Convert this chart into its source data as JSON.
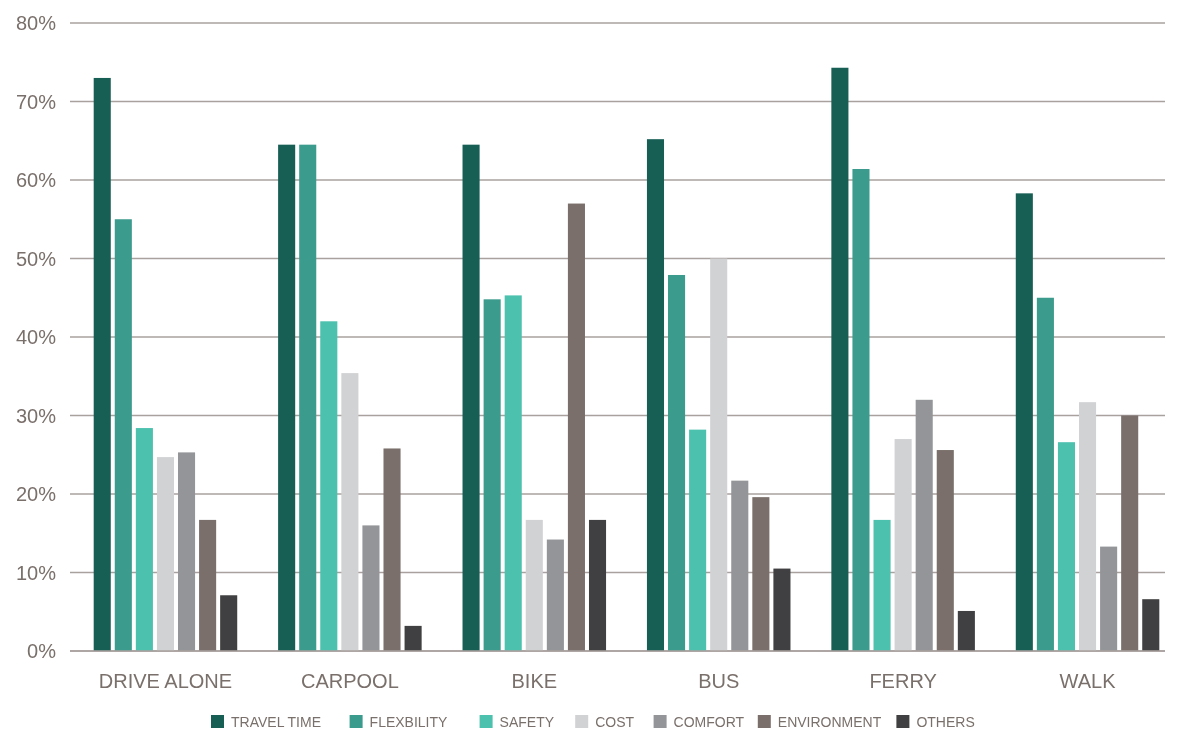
{
  "chart_data": {
    "type": "bar",
    "categories": [
      "DRIVE ALONE",
      "CARPOOL",
      "BIKE",
      "BUS",
      "FERRY",
      "WALK"
    ],
    "series": [
      {
        "name": "TRAVEL TIME",
        "color": "#175f55",
        "values": [
          73,
          64.5,
          64.5,
          65.2,
          74.3,
          58.3
        ]
      },
      {
        "name": "FLEXBILITY",
        "color": "#3b9b8c",
        "values": [
          55,
          64.5,
          44.8,
          47.9,
          61.4,
          45
        ]
      },
      {
        "name": "SAFETY",
        "color": "#4cc1ae",
        "values": [
          28.4,
          42,
          45.3,
          28.2,
          16.7,
          26.6
        ]
      },
      {
        "name": "COST",
        "color": "#d1d2d4",
        "values": [
          24.7,
          35.4,
          16.7,
          50,
          27,
          31.7
        ]
      },
      {
        "name": "COMFORT",
        "color": "#939598",
        "values": [
          25.3,
          16,
          14.2,
          21.7,
          32,
          13.3
        ]
      },
      {
        "name": "ENVIRONMENT",
        "color": "#7a6f6a",
        "values": [
          16.7,
          25.8,
          57,
          19.6,
          25.6,
          30
        ]
      },
      {
        "name": "OTHERS",
        "color": "#404042",
        "values": [
          7.1,
          3.2,
          16.7,
          10.5,
          5.1,
          6.6
        ]
      }
    ],
    "ylim": [
      0,
      80
    ],
    "yticks": [
      {
        "value": 0,
        "label": "0%"
      },
      {
        "value": 10,
        "label": "10%"
      },
      {
        "value": 20,
        "label": "20%"
      },
      {
        "value": 30,
        "label": "30%"
      },
      {
        "value": 40,
        "label": "40%"
      },
      {
        "value": 50,
        "label": "50%"
      },
      {
        "value": 60,
        "label": "60%"
      },
      {
        "value": 70,
        "label": "70%"
      },
      {
        "value": 80,
        "label": "80%"
      }
    ],
    "grid": "y",
    "legend": "bottom"
  }
}
